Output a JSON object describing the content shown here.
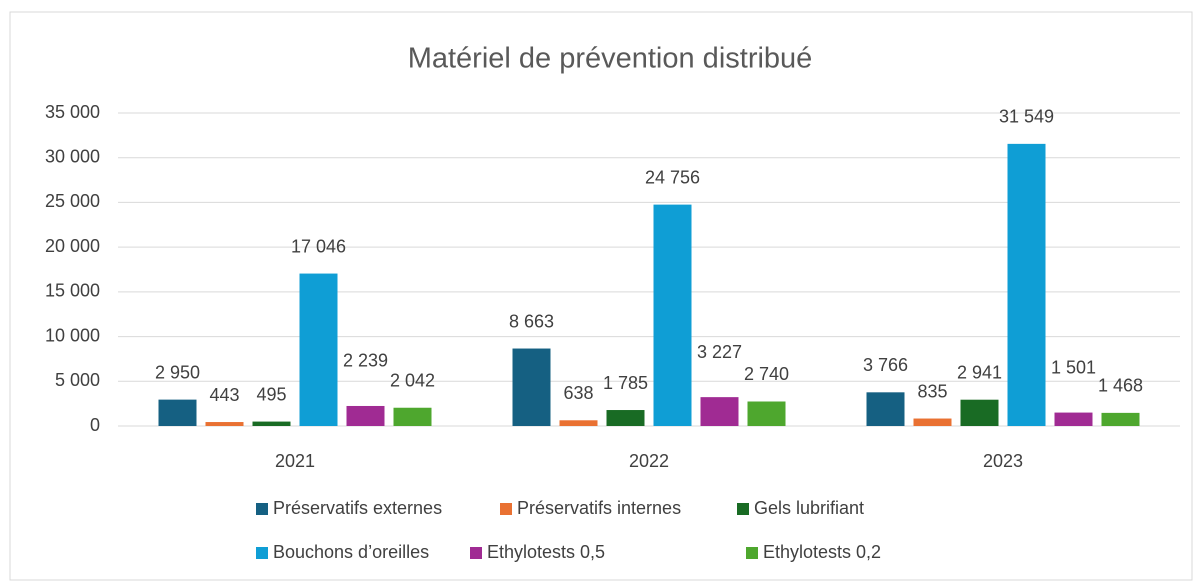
{
  "chart_data": {
    "type": "bar",
    "title": "Matériel de prévention distribué",
    "categories": [
      "2021",
      "2022",
      "2023"
    ],
    "series": [
      {
        "name": "Préservatifs externes",
        "color": "#156082",
        "values": [
          2950,
          8663,
          3766
        ],
        "value_labels": [
          "2 950",
          "8 663",
          "3 766"
        ]
      },
      {
        "name": "Préservatifs internes",
        "color": "#e97132",
        "values": [
          443,
          638,
          835
        ],
        "value_labels": [
          "443",
          "638",
          "835"
        ]
      },
      {
        "name": "Gels lubrifiant",
        "color": "#196b24",
        "values": [
          495,
          1785,
          2941
        ],
        "value_labels": [
          "495",
          "1 785",
          "2 941"
        ]
      },
      {
        "name": "Bouchons d’oreilles",
        "color": "#0f9ed5",
        "values": [
          17046,
          24756,
          31549
        ],
        "value_labels": [
          "17 046",
          "24 756",
          "31 549"
        ]
      },
      {
        "name": "Ethylotests 0,5",
        "color": "#a02b93",
        "values": [
          2239,
          3227,
          1501
        ],
        "value_labels": [
          "2 239",
          "3 227",
          "1 501"
        ]
      },
      {
        "name": "Ethylotests 0,2",
        "color": "#4ea72e",
        "values": [
          2042,
          2740,
          1468
        ],
        "value_labels": [
          "2 042",
          "2 740",
          "1 468"
        ]
      }
    ],
    "ylim": [
      0,
      35000
    ],
    "yticks": [
      0,
      {
        "value": 5000,
        "label": "5 000"
      },
      {
        "value": 10000,
        "label": "10 000"
      },
      {
        "value": 15000,
        "label": "15 000"
      },
      {
        "value": 20000,
        "label": "20 000"
      },
      {
        "value": 25000,
        "label": "25 000"
      },
      {
        "value": 30000,
        "label": "30 000"
      },
      {
        "value": 35000,
        "label": "35 000"
      }
    ],
    "grid": true,
    "legend": "bottom"
  }
}
